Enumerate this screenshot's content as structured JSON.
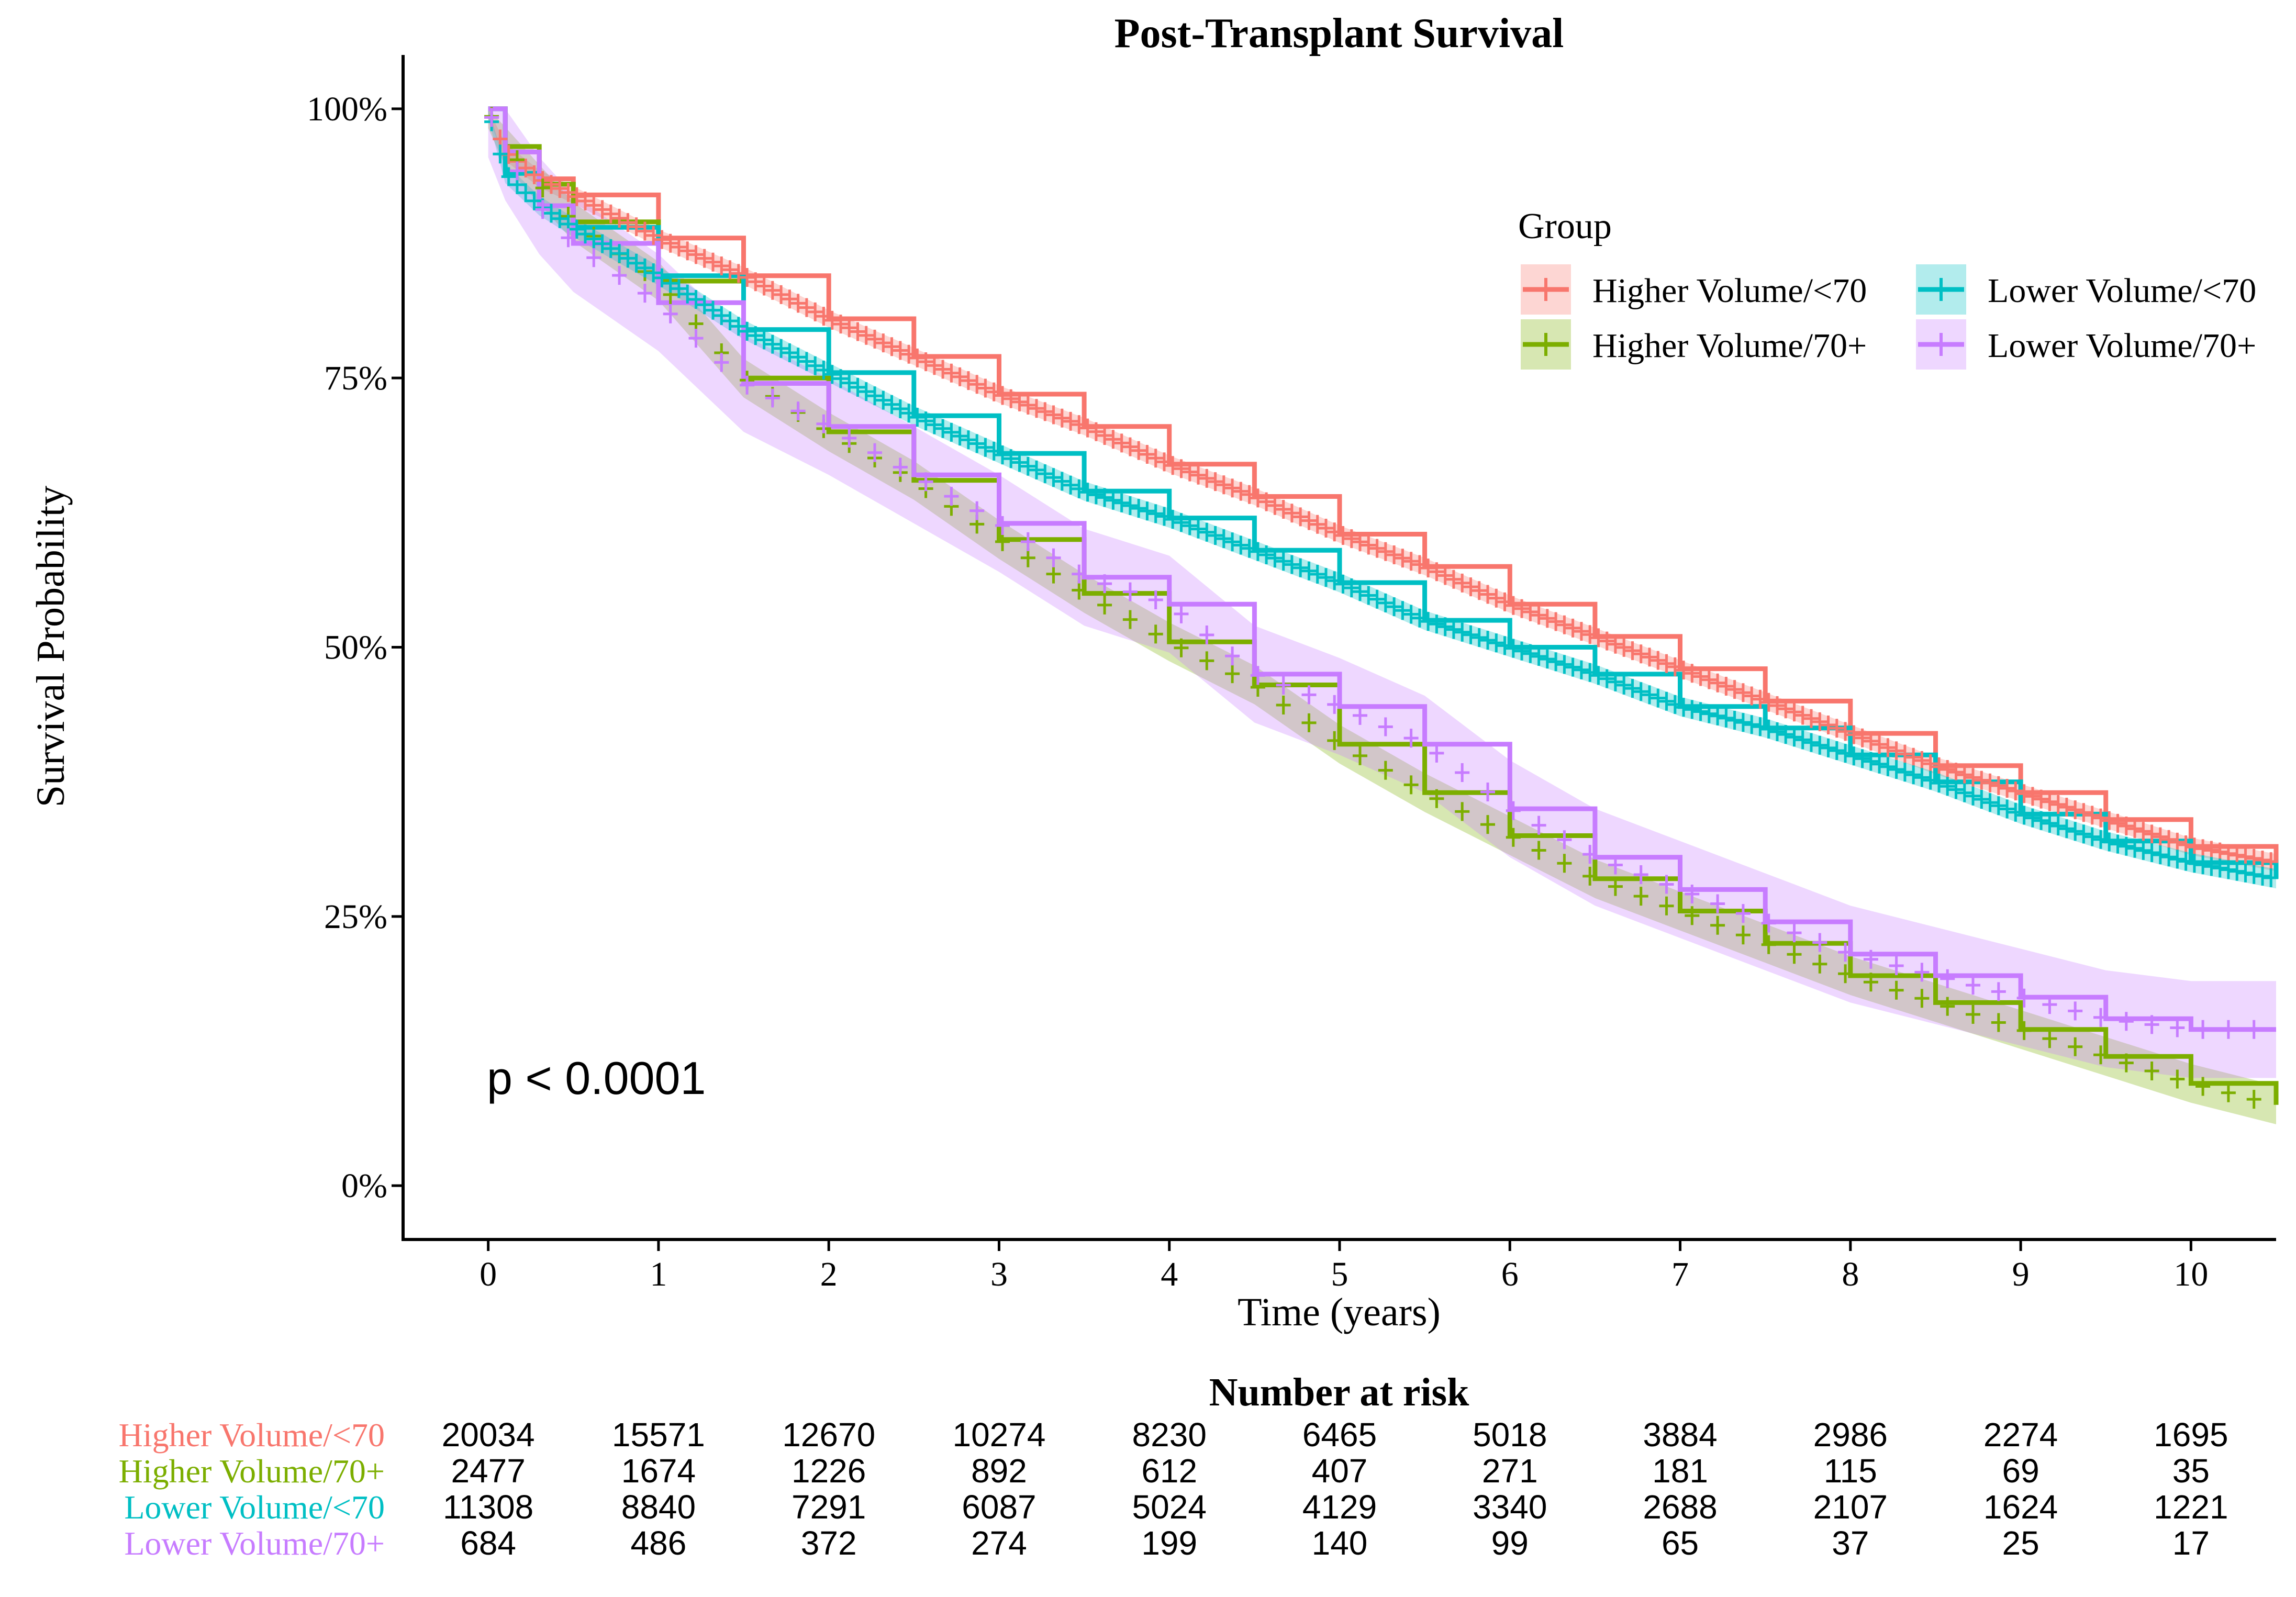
{
  "chart_data": {
    "type": "line",
    "title": "Post-Transplant Survival",
    "xlabel": "Time (years)",
    "ylabel": "Survival Probability",
    "xlim": [
      -0.5,
      10.5
    ],
    "ylim": [
      -0.05,
      1.05
    ],
    "x_ticks": [
      0,
      1,
      2,
      3,
      4,
      5,
      6,
      7,
      8,
      9,
      10
    ],
    "y_ticks": [
      {
        "value": 0,
        "label": "0%"
      },
      {
        "value": 0.25,
        "label": "25%"
      },
      {
        "value": 0.5,
        "label": "50%"
      },
      {
        "value": 0.75,
        "label": "75%"
      },
      {
        "value": 1.0,
        "label": "100%"
      }
    ],
    "grid": false,
    "legend": {
      "title": "Group",
      "placement": "top-right"
    },
    "annotation": "p < 0.0001",
    "series": [
      {
        "name": "Higher Volume/<70",
        "color": "#F8766D",
        "x": [
          0,
          0.1,
          0.3,
          0.5,
          1,
          1.5,
          2,
          2.5,
          3,
          3.5,
          4,
          4.5,
          5,
          5.5,
          6,
          6.5,
          7,
          7.5,
          8,
          8.5,
          9,
          9.5,
          10,
          10.5
        ],
        "y": [
          1.0,
          0.96,
          0.935,
          0.92,
          0.88,
          0.845,
          0.805,
          0.77,
          0.735,
          0.705,
          0.67,
          0.64,
          0.605,
          0.575,
          0.54,
          0.51,
          0.48,
          0.45,
          0.42,
          0.39,
          0.365,
          0.34,
          0.315,
          0.3
        ],
        "ci_halfwidth": 0.008
      },
      {
        "name": "Higher Volume/70+",
        "color": "#7CAE00",
        "x": [
          0,
          0.1,
          0.3,
          0.5,
          1,
          1.5,
          2,
          2.5,
          3,
          3.5,
          4,
          4.5,
          5,
          5.5,
          6,
          6.5,
          7,
          7.5,
          8,
          8.5,
          9,
          9.5,
          10,
          10.5
        ],
        "y": [
          1.0,
          0.965,
          0.93,
          0.895,
          0.84,
          0.75,
          0.7,
          0.655,
          0.6,
          0.55,
          0.505,
          0.465,
          0.41,
          0.365,
          0.325,
          0.285,
          0.255,
          0.225,
          0.195,
          0.17,
          0.145,
          0.12,
          0.095,
          0.075
        ],
        "ci_halfwidth": 0.018
      },
      {
        "name": "Lower Volume/<70",
        "color": "#00BFC4",
        "x": [
          0,
          0.1,
          0.3,
          0.5,
          1,
          1.5,
          2,
          2.5,
          3,
          3.5,
          4,
          4.5,
          5,
          5.5,
          6,
          6.5,
          7,
          7.5,
          8,
          8.5,
          9,
          9.5,
          10,
          10.5
        ],
        "y": [
          1.0,
          0.94,
          0.91,
          0.89,
          0.845,
          0.795,
          0.755,
          0.715,
          0.68,
          0.645,
          0.62,
          0.59,
          0.56,
          0.525,
          0.5,
          0.475,
          0.445,
          0.425,
          0.4,
          0.375,
          0.345,
          0.32,
          0.3,
          0.285
        ],
        "ci_halfwidth": 0.009
      },
      {
        "name": "Lower Volume/70+",
        "color": "#C77CFF",
        "x": [
          0,
          0.1,
          0.3,
          0.5,
          1,
          1.5,
          2,
          2.5,
          3,
          3.5,
          4,
          4.5,
          5,
          5.5,
          6,
          6.5,
          7,
          7.5,
          8,
          8.5,
          9,
          9.5,
          10,
          10.5
        ],
        "y": [
          1.0,
          0.96,
          0.91,
          0.875,
          0.82,
          0.745,
          0.705,
          0.66,
          0.615,
          0.565,
          0.54,
          0.475,
          0.445,
          0.41,
          0.35,
          0.305,
          0.275,
          0.245,
          0.215,
          0.195,
          0.175,
          0.155,
          0.145,
          0.145
        ],
        "ci_halfwidth": 0.045
      }
    ],
    "risk_table": {
      "title": "Number at risk",
      "times": [
        0,
        1,
        2,
        3,
        4,
        5,
        6,
        7,
        8,
        9,
        10
      ],
      "rows": [
        {
          "label": "Higher Volume/<70",
          "color": "#F8766D",
          "values": [
            "20034",
            "15571",
            "12670",
            "10274",
            "8230",
            "6465",
            "5018",
            "3884",
            "2986",
            "2274",
            "1695"
          ]
        },
        {
          "label": "Higher Volume/70+",
          "color": "#7CAE00",
          "values": [
            "2477",
            "1674",
            "1226",
            "892",
            "612",
            "407",
            "271",
            "181",
            "115",
            "69",
            "35"
          ]
        },
        {
          "label": "Lower Volume/<70",
          "color": "#00BFC4",
          "values": [
            "11308",
            "8840",
            "7291",
            "6087",
            "5024",
            "4129",
            "3340",
            "2688",
            "2107",
            "1624",
            "1221"
          ]
        },
        {
          "label": "Lower Volume/70+",
          "color": "#C77CFF",
          "values": [
            "684",
            "486",
            "372",
            "274",
            "199",
            "140",
            "99",
            "65",
            "37",
            "25",
            "17"
          ]
        }
      ]
    }
  }
}
